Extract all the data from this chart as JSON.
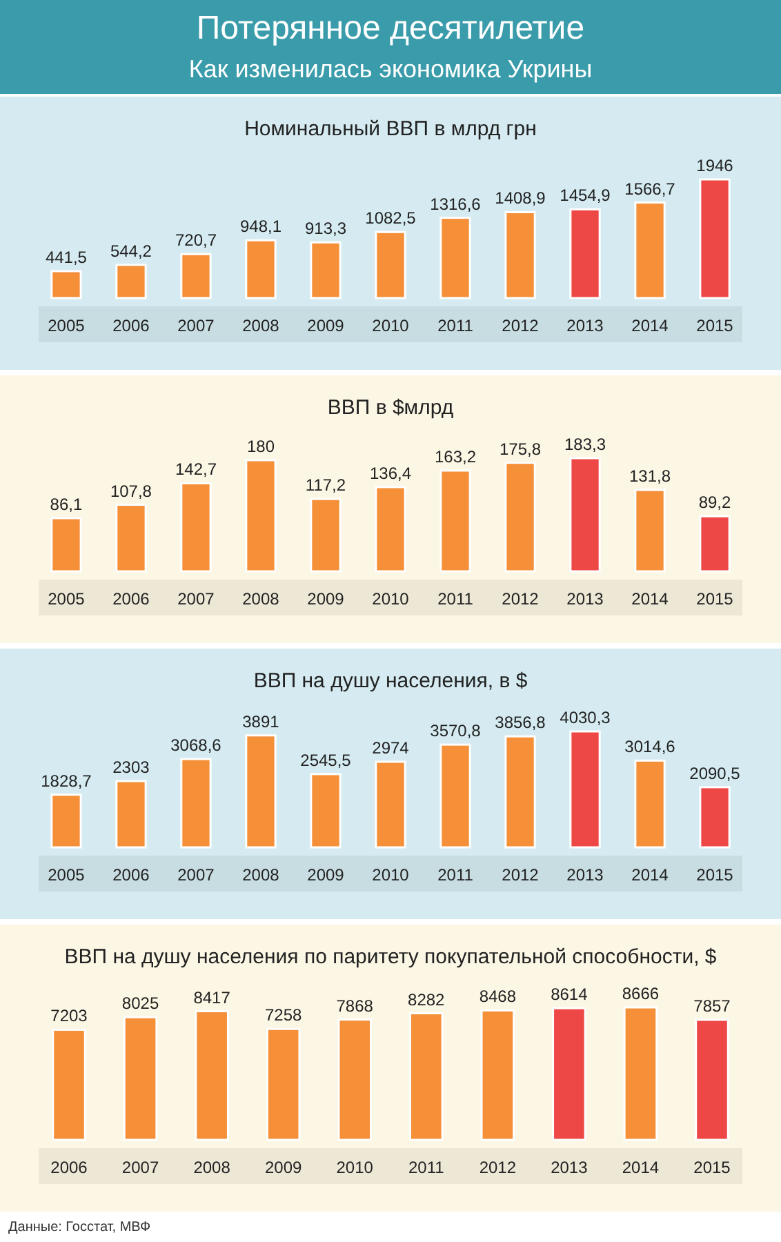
{
  "chart_data": [
    {
      "type": "bar",
      "title": "Номинальный ВВП в млрд грн",
      "annotations": [
        "Потерянное десятилетие",
        "Как изменилась экономика Укрины"
      ],
      "categories": [
        "2005",
        "2006",
        "2007",
        "2008",
        "2009",
        "2010",
        "2011",
        "2012",
        "2013",
        "2014",
        "2015"
      ],
      "values": [
        441.5,
        544.2,
        720.7,
        948.1,
        913.3,
        1082.5,
        1316.6,
        1408.9,
        1454.9,
        1566.7,
        1946
      ],
      "value_labels": [
        "441,5",
        "544,2",
        "720,7",
        "948,1",
        "913,3",
        "1082,5",
        "1316,6",
        "1408,9",
        "1454,9",
        "1566,7",
        "1946"
      ],
      "colors": [
        "#f58f38",
        "#f58f38",
        "#f58f38",
        "#f58f38",
        "#f58f38",
        "#f58f38",
        "#f58f38",
        "#f58f38",
        "#ee4846",
        "#f58f38",
        "#ee4846"
      ]
    },
    {
      "type": "bar",
      "title": "ВВП в $млрд",
      "categories": [
        "2005",
        "2006",
        "2007",
        "2008",
        "2009",
        "2010",
        "2011",
        "2012",
        "2013",
        "2014",
        "2015"
      ],
      "values": [
        86.1,
        107.8,
        142.7,
        180,
        117.2,
        136.4,
        163.2,
        175.8,
        183.3,
        131.8,
        89.2
      ],
      "value_labels": [
        "86,1",
        "107,8",
        "142,7",
        "180",
        "117,2",
        "136,4",
        "163,2",
        "175,8",
        "183,3",
        "131,8",
        "89,2"
      ],
      "colors": [
        "#f58f38",
        "#f58f38",
        "#f58f38",
        "#f58f38",
        "#f58f38",
        "#f58f38",
        "#f58f38",
        "#f58f38",
        "#ee4846",
        "#f58f38",
        "#ee4846"
      ]
    },
    {
      "type": "bar",
      "title": "ВВП на душу населения, в $",
      "categories": [
        "2005",
        "2006",
        "2007",
        "2008",
        "2009",
        "2010",
        "2011",
        "2012",
        "2013",
        "2014",
        "2015"
      ],
      "values": [
        1828.7,
        2303,
        3068.6,
        3891,
        2545.5,
        2974,
        3570.8,
        3856.8,
        4030.3,
        3014.6,
        2090.5
      ],
      "value_labels": [
        "1828,7",
        "2303",
        "3068,6",
        "3891",
        "2545,5",
        "2974",
        "3570,8",
        "3856,8",
        "4030,3",
        "3014,6",
        "2090,5"
      ],
      "colors": [
        "#f58f38",
        "#f58f38",
        "#f58f38",
        "#f58f38",
        "#f58f38",
        "#f58f38",
        "#f58f38",
        "#f58f38",
        "#ee4846",
        "#f58f38",
        "#ee4846"
      ]
    },
    {
      "type": "bar",
      "title": "ВВП на душу населения по паритету покупательной способности, $",
      "annotations": [
        "Данные: Госстат, МВФ"
      ],
      "categories": [
        "2006",
        "2007",
        "2008",
        "2009",
        "2010",
        "2011",
        "2012",
        "2013",
        "2014",
        "2015"
      ],
      "values": [
        7203,
        8025,
        8417,
        7258,
        7868,
        8282,
        8468,
        8614,
        8666,
        7857
      ],
      "value_labels": [
        "7203",
        "8025",
        "8417",
        "7258",
        "7868",
        "8282",
        "8468",
        "8614",
        "8666",
        "7857"
      ],
      "colors": [
        "#f58f38",
        "#f58f38",
        "#f58f38",
        "#f58f38",
        "#f58f38",
        "#f58f38",
        "#f58f38",
        "#ee4846",
        "#f58f38",
        "#ee4846"
      ]
    }
  ]
}
